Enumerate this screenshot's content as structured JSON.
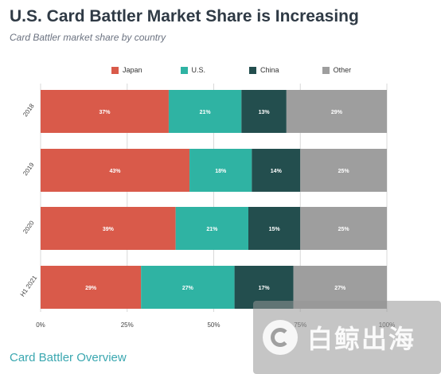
{
  "title": "U.S. Card Battler Market Share is Increasing",
  "subtitle": "Card Battler market share by country",
  "footer_link": "Card Battler Overview",
  "watermark_text": "白鲸出海",
  "colors": {
    "japan": "#d95a4a",
    "us": "#2fb3a3",
    "china": "#234e4e",
    "other": "#9e9e9e",
    "grid": "#d8d8d8",
    "axis_text": "#444444"
  },
  "chart_data": {
    "type": "bar",
    "orientation": "horizontal",
    "stacked": true,
    "title": "U.S. Card Battler Market Share is Increasing",
    "subtitle": "Card Battler market share by country",
    "categories": [
      "2018",
      "2019",
      "2020",
      "H1 2021"
    ],
    "series": [
      {
        "name": "Japan",
        "color": "#d95a4a",
        "values": [
          37,
          43,
          39,
          29
        ]
      },
      {
        "name": "U.S.",
        "color": "#2fb3a3",
        "values": [
          21,
          18,
          21,
          27
        ]
      },
      {
        "name": "China",
        "color": "#234e4e",
        "values": [
          13,
          14,
          15,
          17
        ]
      },
      {
        "name": "Other",
        "color": "#9e9e9e",
        "values": [
          29,
          25,
          25,
          27
        ]
      }
    ],
    "value_labels": [
      [
        "37%",
        "21%",
        "13%",
        "29%"
      ],
      [
        "43%",
        "18%",
        "14%",
        "25%"
      ],
      [
        "39%",
        "21%",
        "15%",
        "25%"
      ],
      [
        "29%",
        "27%",
        "17%",
        "27%"
      ]
    ],
    "xticks": [
      "0%",
      "25%",
      "50%",
      "75%",
      "100%"
    ],
    "xtick_values": [
      0,
      25,
      50,
      75,
      100
    ],
    "xlim": [
      0,
      100
    ],
    "grid": true,
    "legend_position": "top-center"
  }
}
